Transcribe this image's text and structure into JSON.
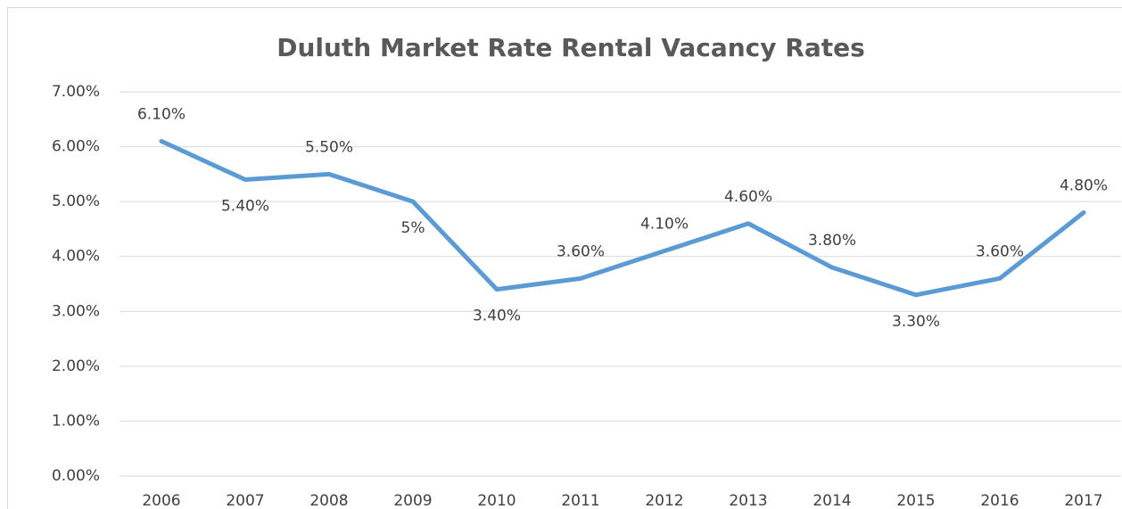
{
  "chart_data": {
    "type": "line",
    "title": "Duluth Market Rate Rental Vacancy Rates",
    "categories": [
      "2006",
      "2007",
      "2008",
      "2009",
      "2010",
      "2011",
      "2012",
      "2013",
      "2014",
      "2015",
      "2016",
      "2017"
    ],
    "series": [
      {
        "name": "Vacancy Rate",
        "color": "#5b9bd5",
        "values": [
          6.1,
          5.4,
          5.5,
          5,
          3.4,
          3.6,
          4.1,
          4.6,
          3.8,
          3.3,
          3.6,
          4.8
        ],
        "value_labels": [
          "6.10%",
          "5.40%",
          "5.50%",
          "5%",
          "3.40%",
          "3.60%",
          "4.10%",
          "4.60%",
          "3.80%",
          "3.30%",
          "3.60%",
          "4.80%"
        ]
      }
    ],
    "ylim": [
      0,
      7
    ],
    "yticks": [
      {
        "value": 0,
        "label": "0.00%"
      },
      {
        "value": 1,
        "label": "1.00%"
      },
      {
        "value": 2,
        "label": "2.00%"
      },
      {
        "value": 3,
        "label": "3.00%"
      },
      {
        "value": 4,
        "label": "4.00%"
      },
      {
        "value": 5,
        "label": "5.00%"
      },
      {
        "value": 6,
        "label": "6.00%"
      },
      {
        "value": 7,
        "label": "7.00%"
      }
    ],
    "grid": true
  }
}
